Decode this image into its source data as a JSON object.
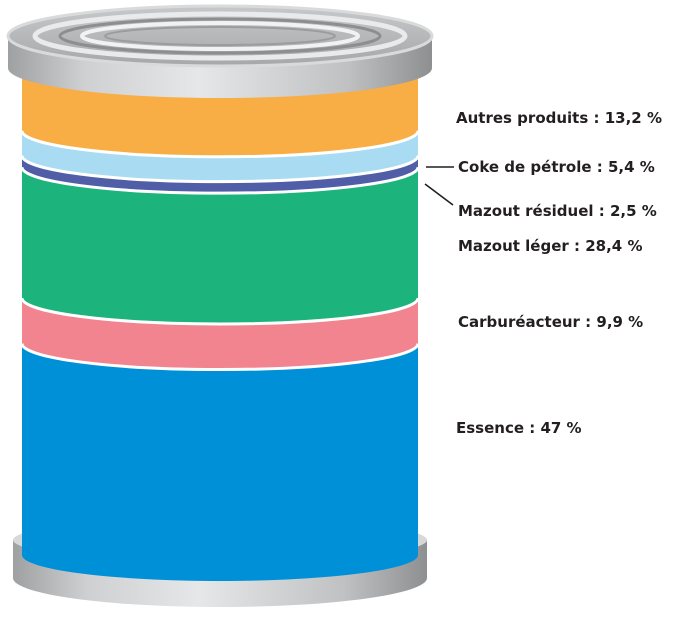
{
  "chart_data": {
    "type": "stacked-bar",
    "categories": [
      "Autres produits",
      "Coke de pétrole",
      "Mazout résiduel",
      "Mazout léger",
      "Carburéacteur",
      "Essence"
    ],
    "values": [
      13.2,
      5.4,
      2.5,
      28.4,
      9.9,
      47
    ],
    "unit": "%",
    "colors": [
      "#f9ae45",
      "#a9dcf2",
      "#4f5ea7",
      "#1db37c",
      "#f2848f",
      "#0090d8"
    ],
    "labels": [
      "Autres produits : 13,2 %",
      "Coke de pétrole : 5,4 %",
      "Mazout résiduel : 2,5 %",
      "Mazout léger : 28,4 %",
      "Carburéacteur : 9,9 %",
      "Essence : 47 %"
    ]
  }
}
